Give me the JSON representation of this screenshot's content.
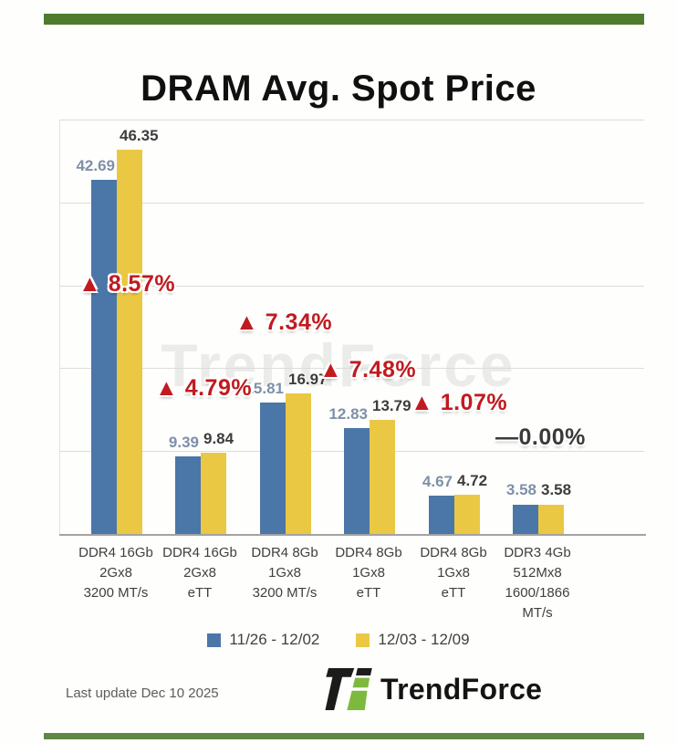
{
  "page": {
    "title": "DRAM Avg. Spot Price",
    "last_update": "Last update Dec 10 2025",
    "brand_name": "TrendForce",
    "watermark_text": "TrendForce"
  },
  "colors": {
    "accent_green": "#4e7b2e",
    "logo_green": "#7db93d",
    "series1_blue": "#4b76a8",
    "series2_yellow": "#eac843",
    "change_up_red": "#c01b20",
    "change_flat_dark": "#3a3a3a"
  },
  "chart_data": {
    "type": "bar",
    "title": "DRAM Avg. Spot Price",
    "categories": [
      [
        "DDR4 16Gb",
        "2Gx8",
        "3200 MT/s"
      ],
      [
        "DDR4 16Gb",
        "2Gx8",
        "eTT"
      ],
      [
        "DDR4 8Gb",
        "1Gx8",
        "3200 MT/s"
      ],
      [
        "DDR4 8Gb",
        "1Gx8",
        "eTT"
      ],
      [
        "DDR4 8Gb",
        "1Gx8",
        "eTT"
      ],
      [
        "DDR3 4Gb",
        "512Mx8",
        "1600/1866",
        "MT/s"
      ]
    ],
    "series": [
      {
        "name": "11/26 - 12/02",
        "color": "#4b76a8",
        "values": [
          42.69,
          9.39,
          15.81,
          12.83,
          4.67,
          3.58
        ]
      },
      {
        "name": "12/03 - 12/09",
        "color": "#eac843",
        "values": [
          46.35,
          9.84,
          16.97,
          13.79,
          4.72,
          3.58
        ]
      }
    ],
    "changes": [
      {
        "label": "▲ 8.57%",
        "direction": "up"
      },
      {
        "label": "▲ 4.79%",
        "direction": "up"
      },
      {
        "label": "▲ 7.34%",
        "direction": "up"
      },
      {
        "label": "▲ 7.48%",
        "direction": "up"
      },
      {
        "label": "▲ 1.07%",
        "direction": "up"
      },
      {
        "label": "—0.00%",
        "direction": "flat"
      }
    ],
    "ylim": [
      0,
      50
    ],
    "grid": true,
    "grid_step": 10,
    "y_axis_labels_visible": false,
    "legend_position": "bottom",
    "xlabel": "",
    "ylabel": ""
  }
}
